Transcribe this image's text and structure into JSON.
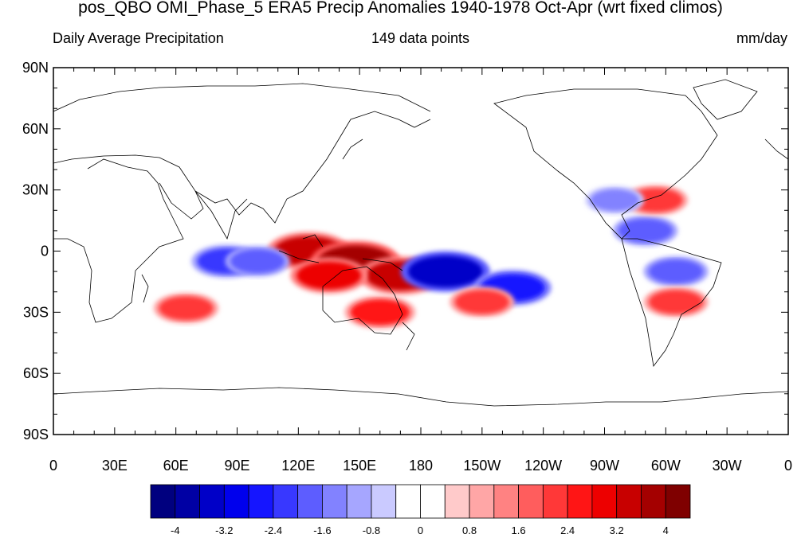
{
  "title": "pos_QBO OMI_Phase_5 ERA5 Precip Anomalies 1940-1978 Oct-Apr (wrt fixed climos)",
  "left_string": "Daily Average Precipitation",
  "center_string": "149 data points",
  "right_string": "mm/day",
  "map": {
    "projection": "cylindrical-equidistant",
    "lon_range": [
      0,
      360
    ],
    "lat_range": [
      -90,
      90
    ],
    "lat_labels": [
      "90N",
      "60N",
      "30N",
      "0",
      "30S",
      "60S",
      "90S"
    ],
    "lon_labels": [
      "0",
      "30E",
      "60E",
      "90E",
      "120E",
      "150E",
      "180",
      "150W",
      "120W",
      "90W",
      "60W",
      "30W",
      "0"
    ],
    "anomaly_features": [
      {
        "lon": 125,
        "lat": 0,
        "value": 3.2
      },
      {
        "lon": 148,
        "lat": -5,
        "value": 3.6
      },
      {
        "lon": 170,
        "lat": -12,
        "value": 3.2
      },
      {
        "lon": 160,
        "lat": -30,
        "value": 2.4
      },
      {
        "lon": 135,
        "lat": -12,
        "value": 2.8
      },
      {
        "lon": 192,
        "lat": -10,
        "value": -3.6
      },
      {
        "lon": 225,
        "lat": -18,
        "value": -2.8
      },
      {
        "lon": 210,
        "lat": -25,
        "value": 2.0
      },
      {
        "lon": 85,
        "lat": -5,
        "value": -2.4
      },
      {
        "lon": 100,
        "lat": -5,
        "value": -2.0
      },
      {
        "lon": 65,
        "lat": -28,
        "value": 2.0
      },
      {
        "lon": 290,
        "lat": 10,
        "value": -2.0
      },
      {
        "lon": 295,
        "lat": 25,
        "value": 2.0
      },
      {
        "lon": 305,
        "lat": -10,
        "value": -2.0
      },
      {
        "lon": 305,
        "lat": -25,
        "value": 2.0
      },
      {
        "lon": 275,
        "lat": 25,
        "value": -1.6
      }
    ]
  },
  "colorbar": {
    "labels": [
      "-4",
      "-3.2",
      "-2.4",
      "-1.6",
      "-0.8",
      "0",
      "0.8",
      "1.6",
      "2.4",
      "3.2",
      "4"
    ],
    "colors": [
      "#00007f",
      "#0000a4",
      "#0000c8",
      "#0000ed",
      "#1515ff",
      "#3838ff",
      "#5d5dff",
      "#8282ff",
      "#a6a6ff",
      "#cacaff",
      "#ffffff",
      "#ffffff",
      "#ffcaca",
      "#ffa6a6",
      "#ff8282",
      "#ff5d5d",
      "#ff3838",
      "#ff1515",
      "#ed0000",
      "#c80000",
      "#a40000",
      "#7f0000"
    ]
  }
}
